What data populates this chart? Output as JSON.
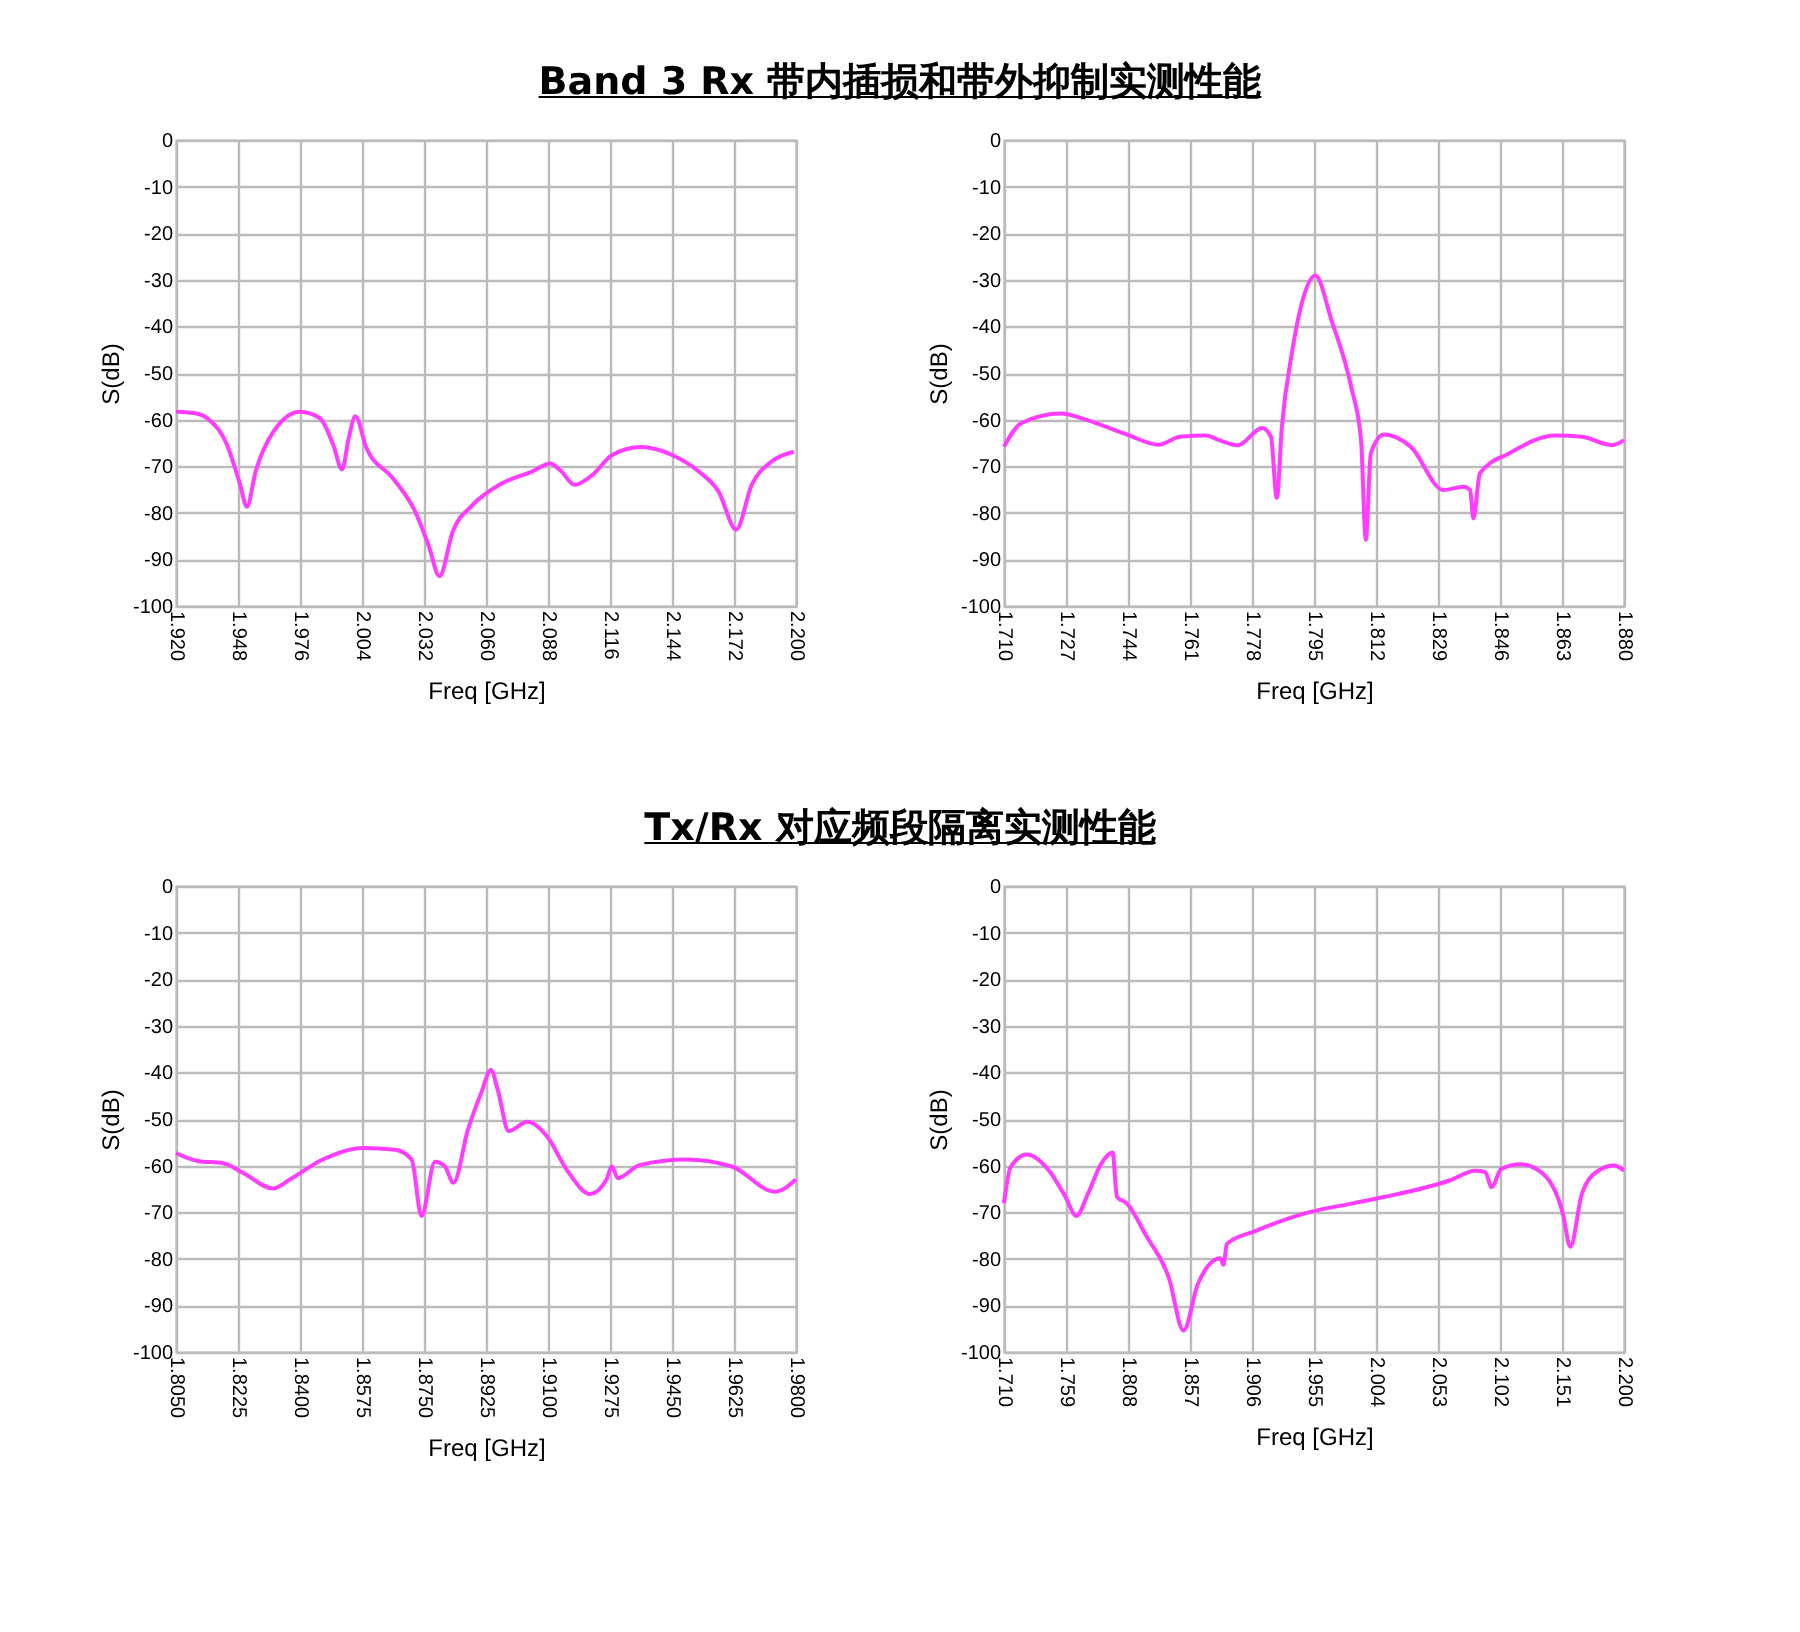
{
  "chart_data": [
    {
      "type": "line",
      "title": "Band 3 Rx 带内插损和带外抑制实测性能",
      "xlabel": "Freq [GHz]",
      "ylabel": "S(dB)",
      "grid": true,
      "xlim": [
        1.92,
        2.2
      ],
      "ylim": [
        -100,
        0
      ],
      "xticks": [
        {
          "value": 1.92,
          "label": "1.920"
        },
        {
          "value": 1.948,
          "label": "1.948"
        },
        {
          "value": 1.976,
          "label": "1.976"
        },
        {
          "value": 2.004,
          "label": "2.004"
        },
        {
          "value": 2.032,
          "label": "2.032"
        },
        {
          "value": 2.06,
          "label": "2.060"
        },
        {
          "value": 2.088,
          "label": "2.088"
        },
        {
          "value": 2.116,
          "label": "2.116"
        },
        {
          "value": 2.144,
          "label": "2.144"
        },
        {
          "value": 2.172,
          "label": "2.172"
        },
        {
          "value": 2.2,
          "label": "2.200"
        }
      ],
      "yticks": [
        0,
        -10,
        -20,
        -30,
        -40,
        -50,
        -60,
        -70,
        -80,
        -90,
        -100
      ],
      "x": [
        1.92,
        1.928,
        1.934,
        1.943,
        1.949,
        1.952,
        1.956,
        1.964,
        1.976,
        1.985,
        1.991,
        1.995,
        1.998,
        2.001,
        2.006,
        2.018,
        2.028,
        2.034,
        2.039,
        2.045,
        2.054,
        2.066,
        2.081,
        2.089,
        2.094,
        2.1,
        2.108,
        2.117,
        2.13,
        2.144,
        2.156,
        2.165,
        2.173,
        2.18,
        2.189,
        2.199
      ],
      "series": [
        {
          "color": "#ff3cff",
          "values": [
            -58.3,
            -58.6,
            -59.7,
            -65.4,
            -74,
            -78.7,
            -71.1,
            -62.6,
            -58.3,
            -59.7,
            -65.4,
            -70.7,
            -64,
            -59.3,
            -66.1,
            -72.6,
            -79.7,
            -86.9,
            -93.6,
            -84,
            -78.3,
            -74,
            -71.1,
            -69.4,
            -71.1,
            -74,
            -71.9,
            -67.6,
            -65.9,
            -67.6,
            -71.1,
            -75.4,
            -83.6,
            -74,
            -69,
            -66.9
          ]
        }
      ]
    },
    {
      "type": "line",
      "xlabel": "Freq [GHz]",
      "ylabel": "S(dB)",
      "grid": true,
      "xlim": [
        1.71,
        1.88
      ],
      "ylim": [
        -100,
        0
      ],
      "xticks": [
        {
          "value": 1.71,
          "label": "1.710"
        },
        1.727,
        1.744,
        1.761,
        1.778,
        1.795,
        1.812,
        1.829,
        1.846,
        1.863,
        {
          "value": 1.88,
          "label": "1.880"
        }
      ],
      "yticks": [
        0,
        -10,
        -20,
        -30,
        -40,
        -50,
        -60,
        -70,
        -80,
        -90,
        -100
      ],
      "x": [
        1.71,
        1.7147,
        1.7256,
        1.7328,
        1.7437,
        1.7524,
        1.7582,
        1.7654,
        1.769,
        1.7741,
        1.7808,
        1.7832,
        1.7848,
        1.7862,
        1.7889,
        1.7916,
        1.7954,
        1.7998,
        1.8052,
        1.8079,
        1.8092,
        1.8106,
        1.8142,
        1.8215,
        1.8305,
        1.836,
        1.8378,
        1.8387,
        1.8405,
        1.8486,
        1.8613,
        1.8685,
        1.8767,
        1.88
      ],
      "series": [
        {
          "color": "#ff3cff",
          "values": [
            -65.8,
            -60.8,
            -58.7,
            -60.1,
            -63.2,
            -65.4,
            -63.7,
            -63.4,
            -64.4,
            -65.5,
            -61.8,
            -63.7,
            -76.8,
            -61.5,
            -45.9,
            -35.2,
            -29.1,
            -38.7,
            -53,
            -64.4,
            -85.8,
            -67.2,
            -63.2,
            -65.8,
            -75.1,
            -74.4,
            -75.1,
            -81.2,
            -71.5,
            -67.2,
            -63.4,
            -63.7,
            -65.5,
            -64.4
          ]
        }
      ]
    },
    {
      "type": "line",
      "title": "Tx/Rx 对应频段隔离实测性能",
      "xlabel": "Freq [GHz]",
      "ylabel": "S(dB)",
      "grid": true,
      "xlim": [
        1.805,
        1.98
      ],
      "ylim": [
        -100,
        0
      ],
      "xticks": [
        {
          "value": 1.805,
          "label": "1.8050"
        },
        1.8225,
        {
          "value": 1.84,
          "label": "1.8400"
        },
        1.8575,
        {
          "value": 1.875,
          "label": "1.8750"
        },
        1.8925,
        {
          "value": 1.91,
          "label": "1.9100"
        },
        1.9275,
        {
          "value": 1.945,
          "label": "1.9450"
        },
        1.9625,
        {
          "value": 1.98,
          "label": "1.9800"
        }
      ],
      "yticks": [
        0,
        -10,
        -20,
        -30,
        -40,
        -50,
        -60,
        -70,
        -80,
        -90,
        -100
      ],
      "x": [
        1.805,
        1.811,
        1.8184,
        1.824,
        1.8324,
        1.8371,
        1.8464,
        1.8576,
        1.8669,
        1.8715,
        1.8743,
        1.8781,
        1.8809,
        1.8833,
        1.8874,
        1.8911,
        1.8939,
        1.8958,
        1.8989,
        1.9042,
        1.9098,
        1.9153,
        1.9219,
        1.9265,
        1.928,
        1.9297,
        1.9358,
        1.9489,
        1.9619,
        1.9741,
        1.98
      ],
      "series": [
        {
          "color": "#ff3cff",
          "values": [
            -57.3,
            -59,
            -59.5,
            -61.6,
            -64.9,
            -63,
            -58.7,
            -56.2,
            -56.6,
            -58.7,
            -70.8,
            -59.2,
            -60.2,
            -63.7,
            -52.3,
            -44.5,
            -39.5,
            -43.7,
            -52.6,
            -50.6,
            -53.8,
            -60.9,
            -66.1,
            -63,
            -60.2,
            -62.7,
            -59.9,
            -58.7,
            -60.2,
            -65.6,
            -63
          ]
        }
      ]
    },
    {
      "type": "line",
      "xlabel": "Freq [GHz]",
      "ylabel": "S(dB)",
      "grid": true,
      "xlim": [
        1.71,
        2.2
      ],
      "ylim": [
        -100,
        0
      ],
      "xticks": [
        {
          "value": 1.71,
          "label": "1.710"
        },
        1.759,
        1.808,
        1.857,
        1.906,
        1.955,
        2.004,
        2.053,
        2.102,
        2.151,
        {
          "value": 2.2,
          "label": "2.200"
        }
      ],
      "yticks": [
        0,
        -10,
        -20,
        -30,
        -40,
        -50,
        -60,
        -70,
        -80,
        -90,
        -100
      ],
      "x": [
        1.71,
        1.7151,
        1.7279,
        1.7457,
        1.7585,
        1.7672,
        1.7764,
        1.7866,
        1.7958,
        1.7993,
        1.807,
        1.8223,
        1.8402,
        1.8519,
        1.8632,
        1.881,
        1.8835,
        1.8861,
        1.9091,
        1.9499,
        1.9856,
        2.0111,
        2.0622,
        2.0826,
        2.0903,
        2.0954,
        2.103,
        2.1183,
        2.1362,
        2.1515,
        2.1576,
        2.1668,
        2.1796,
        2.1924,
        2.2
      ],
      "series": [
        {
          "color": "#ff3cff",
          "values": [
            -68.1,
            -60.4,
            -57.6,
            -61.1,
            -66.7,
            -70.8,
            -66,
            -59.7,
            -57.2,
            -66.7,
            -68.1,
            -75,
            -84,
            -95.4,
            -85.4,
            -79.9,
            -81.3,
            -76.8,
            -74,
            -70.1,
            -68.1,
            -66.7,
            -63.2,
            -61.1,
            -61.4,
            -64.6,
            -60.7,
            -59.7,
            -61.8,
            -70.1,
            -77.4,
            -66,
            -61.1,
            -60,
            -61.1
          ]
        }
      ]
    }
  ]
}
